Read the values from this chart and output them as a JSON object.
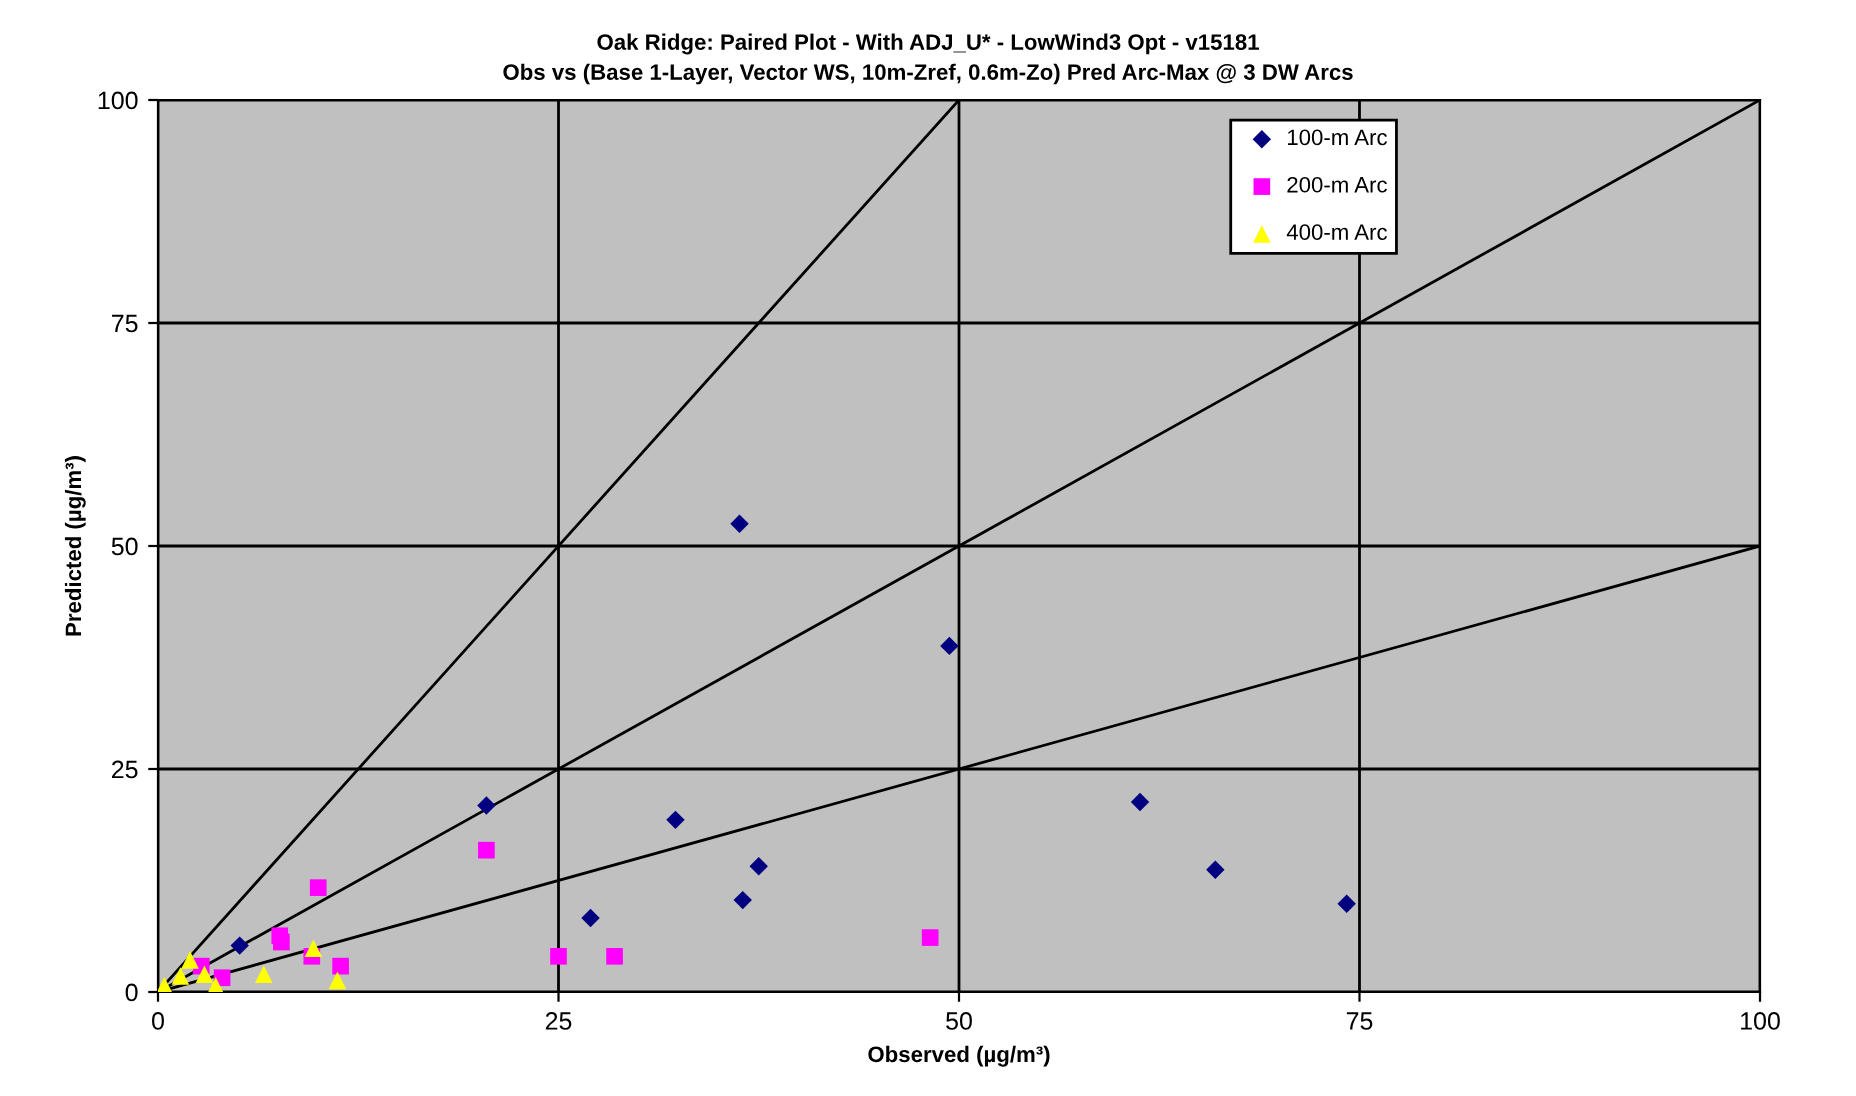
{
  "chart_data": {
    "type": "scatter",
    "title": "Oak Ridge: Paired Plot - With ADJ_U* - LowWind3 Opt - v15181",
    "subtitle": "Obs vs (Base 1-Layer, Vector WS, 10m-Zref, 0.6m-Zo) Pred Arc-Max @ 3 DW Arcs",
    "xlabel": "Observed (µg/m³)",
    "ylabel": "Predicted (µg/m³)",
    "xlim": [
      0,
      100
    ],
    "ylim": [
      0,
      100
    ],
    "xticks": [
      0,
      25,
      50,
      75,
      100
    ],
    "yticks": [
      0,
      25,
      50,
      75,
      100
    ],
    "grid": true,
    "legend": "top right",
    "series": [
      {
        "name": "100-m Arc",
        "color": "#000080",
        "marker": "diamond",
        "x": [
          5.1,
          20.5,
          36.3,
          32.3,
          27.0,
          37.5,
          36.5,
          49.4,
          61.3,
          66.0,
          74.2
        ],
        "values": [
          5.2,
          20.9,
          52.5,
          19.3,
          8.3,
          14.1,
          10.3,
          38.8,
          21.3,
          13.7,
          9.9
        ]
      },
      {
        "name": "200-m Arc",
        "color": "#ff00ff",
        "marker": "square",
        "x": [
          7.6,
          7.7,
          10.0,
          9.6,
          11.4,
          2.7,
          4.0,
          20.5,
          25.0,
          28.5,
          48.2
        ],
        "values": [
          6.3,
          5.6,
          11.7,
          4.0,
          2.9,
          2.9,
          1.6,
          15.9,
          4.0,
          4.0,
          6.1
        ]
      },
      {
        "name": "400-m Arc",
        "color": "#ffff00",
        "marker": "triangle",
        "x": [
          2.0,
          2.9,
          3.6,
          0.4,
          6.6,
          9.7,
          11.2,
          1.4
        ],
        "values": [
          3.6,
          2.0,
          0.7,
          0.7,
          2.0,
          4.9,
          1.3,
          1.8
        ]
      },
      {
        "type": "line",
        "color": "#000000",
        "marker": "none",
        "x": [
          0,
          50
        ],
        "values": [
          0,
          100
        ]
      },
      {
        "type": "line",
        "color": "#000000",
        "marker": "none",
        "x": [
          0,
          100
        ],
        "values": [
          0,
          100
        ]
      },
      {
        "type": "line",
        "color": "#000000",
        "marker": "none",
        "x": [
          0,
          100
        ],
        "values": [
          0,
          50
        ]
      }
    ]
  }
}
